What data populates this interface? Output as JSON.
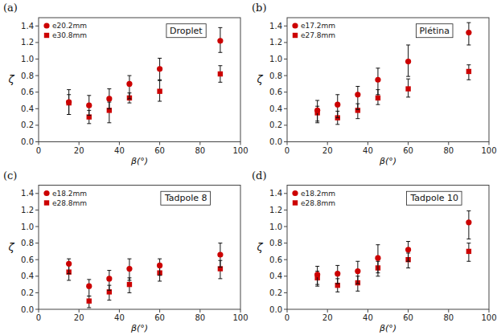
{
  "chart_data": [
    {
      "type": "scatter",
      "title": "Droplet",
      "annotations": [
        "(a)"
      ],
      "x_label": "β(°)",
      "y_label": "ζ",
      "x": [
        15,
        25,
        35,
        45,
        60,
        90
      ],
      "series": [
        {
          "name": "e20.2mm",
          "color": "#CC0000",
          "marker": "circle",
          "values": [
            0.48,
            0.44,
            0.52,
            0.7,
            0.88,
            1.22
          ],
          "error_lo": [
            0.15,
            0.12,
            0.12,
            0.18,
            0.14,
            0.14
          ],
          "error_hi": [
            0.15,
            0.12,
            0.12,
            0.1,
            0.13,
            0.16
          ]
        },
        {
          "name": "e30.8mm",
          "color": "#CC0000",
          "marker": "square",
          "values": [
            0.47,
            0.3,
            0.38,
            0.53,
            0.61,
            0.82
          ],
          "error_lo": [
            0.14,
            0.08,
            0.15,
            0.06,
            0.12,
            0.1
          ],
          "error_hi": [
            0.1,
            0.08,
            0.1,
            0.06,
            0.14,
            0.1
          ]
        }
      ],
      "xlim": [
        0,
        100
      ],
      "xticks": [
        0,
        20,
        40,
        60,
        80,
        100
      ],
      "ylim": [
        0,
        1.5
      ],
      "yticks": [
        {
          "value": 0,
          "label": "0.0"
        },
        0.2,
        0.4,
        0.6,
        0.8,
        {
          "value": 1.0,
          "label": "1.0"
        },
        1.2,
        1.4
      ],
      "grid": false,
      "legend": "upper-left"
    },
    {
      "type": "scatter",
      "title": "Plétina",
      "annotations": [
        "(b)"
      ],
      "x_label": "β(°)",
      "y_label": "ζ",
      "x": [
        15,
        25,
        35,
        45,
        60,
        90
      ],
      "series": [
        {
          "name": "e17.2mm",
          "color": "#CC0000",
          "marker": "circle",
          "values": [
            0.38,
            0.45,
            0.57,
            0.75,
            0.97,
            1.32
          ],
          "error_lo": [
            0.15,
            0.16,
            0.18,
            0.18,
            0.18,
            0.15
          ],
          "error_hi": [
            0.12,
            0.12,
            0.1,
            0.14,
            0.2,
            0.12
          ]
        },
        {
          "name": "e27.8mm",
          "color": "#CC0000",
          "marker": "square",
          "values": [
            0.35,
            0.29,
            0.38,
            0.53,
            0.64,
            0.85
          ],
          "error_lo": [
            0.1,
            0.08,
            0.1,
            0.08,
            0.1,
            0.1
          ],
          "error_hi": [
            0.08,
            0.08,
            0.08,
            0.1,
            0.12,
            0.08
          ]
        }
      ],
      "xlim": [
        0,
        100
      ],
      "xticks": [
        0,
        20,
        40,
        60,
        80,
        100
      ],
      "ylim": [
        0,
        1.5
      ],
      "yticks": [
        {
          "value": 0,
          "label": "0.0"
        },
        0.2,
        0.4,
        0.6,
        0.8,
        {
          "value": 1.0,
          "label": "1.0"
        },
        1.2,
        1.4
      ],
      "grid": false,
      "legend": "upper-left"
    },
    {
      "type": "scatter",
      "title": "Tadpole 8",
      "annotations": [
        "(c)"
      ],
      "x_label": "β(°)",
      "y_label": "ζ",
      "x": [
        15,
        25,
        35,
        45,
        60,
        90
      ],
      "series": [
        {
          "name": "e18.2mm",
          "color": "#CC0000",
          "marker": "circle",
          "values": [
            0.55,
            0.28,
            0.37,
            0.49,
            0.53,
            0.66
          ],
          "error_lo": [
            0.12,
            0.12,
            0.14,
            0.14,
            0.12,
            0.15
          ],
          "error_hi": [
            0.06,
            0.08,
            0.1,
            0.12,
            0.08,
            0.14
          ]
        },
        {
          "name": "e28.8mm",
          "color": "#CC0000",
          "marker": "square",
          "values": [
            0.45,
            0.1,
            0.21,
            0.3,
            0.44,
            0.49
          ],
          "error_lo": [
            0.1,
            0.08,
            0.1,
            0.1,
            0.1,
            0.12
          ],
          "error_hi": [
            0.08,
            0.06,
            0.08,
            0.08,
            0.08,
            0.1
          ]
        }
      ],
      "xlim": [
        0,
        100
      ],
      "xticks": [
        0,
        20,
        40,
        60,
        80,
        100
      ],
      "ylim": [
        0,
        1.5
      ],
      "yticks": [
        {
          "value": 0,
          "label": "0.0"
        },
        0.2,
        0.4,
        0.6,
        0.8,
        {
          "value": 1.0,
          "label": "1.0"
        },
        1.2,
        1.4
      ],
      "grid": false,
      "legend": "upper-left"
    },
    {
      "type": "scatter",
      "title": "Tadpole 10",
      "annotations": [
        "(d)"
      ],
      "x_label": "β(°)",
      "y_label": "ζ",
      "x": [
        15,
        25,
        35,
        45,
        60,
        90
      ],
      "series": [
        {
          "name": "e18.2mm",
          "color": "#CC0000",
          "marker": "circle",
          "values": [
            0.42,
            0.43,
            0.46,
            0.62,
            0.72,
            1.05
          ],
          "error_lo": [
            0.12,
            0.12,
            0.15,
            0.18,
            0.14,
            0.2
          ],
          "error_hi": [
            0.1,
            0.1,
            0.12,
            0.16,
            0.1,
            0.14
          ]
        },
        {
          "name": "e28.8mm",
          "color": "#CC0000",
          "marker": "square",
          "values": [
            0.38,
            0.29,
            0.32,
            0.5,
            0.6,
            0.7
          ],
          "error_lo": [
            0.1,
            0.08,
            0.1,
            0.1,
            0.1,
            0.12
          ],
          "error_hi": [
            0.08,
            0.08,
            0.08,
            0.08,
            0.08,
            0.1
          ]
        }
      ],
      "xlim": [
        0,
        100
      ],
      "xticks": [
        0,
        20,
        40,
        60,
        80,
        100
      ],
      "ylim": [
        0,
        1.5
      ],
      "yticks": [
        {
          "value": 0,
          "label": "0.0"
        },
        0.2,
        0.4,
        0.6,
        0.8,
        {
          "value": 1.0,
          "label": "1.0"
        },
        1.2,
        1.4
      ],
      "grid": false,
      "legend": "upper-left"
    }
  ]
}
